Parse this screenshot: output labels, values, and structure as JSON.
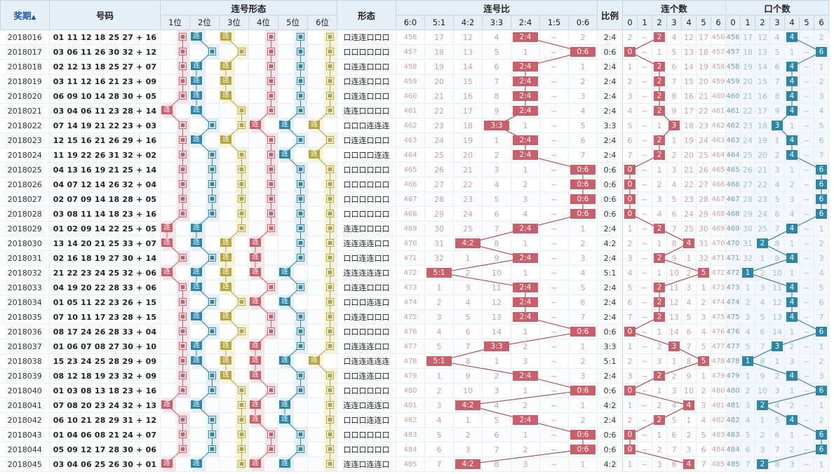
{
  "header": {
    "issue_label": "奖期",
    "sort_arrow": "▲",
    "numbers_label": "号码",
    "lianhao_form_label": "连号形态",
    "form_label": "形态",
    "lianhao_ratio_label": "连号比",
    "bili_label": "比例",
    "lian_count_label": "连个数",
    "kou_count_label": "口个数",
    "positions": [
      "1位",
      "2位",
      "3位",
      "4位",
      "5位",
      "6位"
    ],
    "ratios": [
      "6:0",
      "5:1",
      "4:2",
      "3:3",
      "2:4",
      "1:5",
      "0:6"
    ],
    "counts": [
      "0",
      "1",
      "2",
      "3",
      "4",
      "5",
      "6"
    ]
  },
  "symbols": {
    "lian": "连",
    "open": "口",
    "gap": "~"
  },
  "colors": {
    "position_strips": [
      "#f4e4e7",
      "#e3eef5",
      "#f7f3d8",
      "#f4e4e7",
      "#e3eef5",
      "#f7f3d8"
    ],
    "position_marks": [
      "#c95f6a",
      "#2b86a8",
      "#b5a642",
      "#c95f6a",
      "#2b86a8",
      "#b5a642"
    ],
    "lian_mark": "#c95f6a",
    "kou_mark": "#2b86a8",
    "line": "#9b3a44",
    "line_blue": "#1e6e93"
  },
  "rows": [
    {
      "issue": "2018016",
      "nums": "01 11 12 18 25 27 + 16",
      "form": "口连连口口口",
      "ratio": "2:4",
      "lian": 2,
      "kou": 4,
      "ratio_miss": [
        "456",
        "17",
        "12",
        "4",
        "",
        "~",
        "2"
      ],
      "lian_miss": [
        "2",
        "~",
        "",
        "4",
        "12",
        "17",
        "456"
      ],
      "kou_miss": [
        "456",
        "17",
        "12",
        "4",
        "",
        "~",
        "2"
      ]
    },
    {
      "issue": "2018017",
      "nums": "03 06 11 26 30 32 + 12",
      "form": "口口口口口口",
      "ratio": "0:6",
      "lian": 0,
      "kou": 6,
      "ratio_miss": [
        "457",
        "18",
        "13",
        "5",
        "1",
        "~",
        ""
      ],
      "lian_miss": [
        "",
        "~",
        "1",
        "5",
        "13",
        "18",
        "457"
      ],
      "kou_miss": [
        "457",
        "18",
        "13",
        "5",
        "1",
        "~",
        ""
      ]
    },
    {
      "issue": "2018018",
      "nums": "02 12 13 18 25 27 + 07",
      "form": "口连连口口口",
      "ratio": "2:4",
      "lian": 2,
      "kou": 4,
      "ratio_miss": [
        "458",
        "19",
        "14",
        "6",
        "",
        "~",
        "1"
      ],
      "lian_miss": [
        "1",
        "~",
        "",
        "6",
        "14",
        "19",
        "458"
      ],
      "kou_miss": [
        "458",
        "19",
        "14",
        "6",
        "",
        "~",
        "1"
      ]
    },
    {
      "issue": "2018019",
      "nums": "03 11 12 16 21 23 + 09",
      "form": "口连连口口口",
      "ratio": "2:4",
      "lian": 2,
      "kou": 4,
      "ratio_miss": [
        "459",
        "20",
        "15",
        "7",
        "",
        "~",
        "2"
      ],
      "lian_miss": [
        "2",
        "~",
        "",
        "7",
        "15",
        "20",
        "459"
      ],
      "kou_miss": [
        "459",
        "20",
        "15",
        "7",
        "",
        "~",
        "2"
      ]
    },
    {
      "issue": "2018020",
      "nums": "06 09 10 14 28 30 + 05",
      "form": "口连连口口口",
      "ratio": "2:4",
      "lian": 2,
      "kou": 4,
      "ratio_miss": [
        "460",
        "21",
        "16",
        "8",
        "",
        "~",
        "3"
      ],
      "lian_miss": [
        "3",
        "~",
        "",
        "8",
        "16",
        "21",
        "460"
      ],
      "kou_miss": [
        "460",
        "21",
        "16",
        "8",
        "",
        "~",
        "3"
      ]
    },
    {
      "issue": "2018021",
      "nums": "03 04 06 11 23 28 + 14",
      "form": "连连口口口口",
      "ratio": "2:4",
      "lian": 2,
      "kou": 4,
      "ratio_miss": [
        "461",
        "22",
        "17",
        "9",
        "",
        "~",
        "4"
      ],
      "lian_miss": [
        "4",
        "~",
        "",
        "9",
        "17",
        "22",
        "461"
      ],
      "kou_miss": [
        "461",
        "22",
        "17",
        "9",
        "",
        "~",
        "4"
      ]
    },
    {
      "issue": "2018022",
      "nums": "07 14 19 21 22 23 + 03",
      "form": "口口口连连连",
      "ratio": "3:3",
      "lian": 3,
      "kou": 3,
      "ratio_miss": [
        "462",
        "23",
        "18",
        "",
        "1",
        "~",
        "5"
      ],
      "lian_miss": [
        "5",
        "~",
        "1",
        "",
        "18",
        "23",
        "462"
      ],
      "kou_miss": [
        "462",
        "23",
        "18",
        "",
        "1",
        "~",
        "5"
      ]
    },
    {
      "issue": "2018023",
      "nums": "12 15 16 21 26 29 + 16",
      "form": "口连连口口口",
      "ratio": "2:4",
      "lian": 2,
      "kou": 4,
      "ratio_miss": [
        "463",
        "24",
        "19",
        "1",
        "",
        "~",
        "6"
      ],
      "lian_miss": [
        "6",
        "~",
        "",
        "1",
        "19",
        "24",
        "463"
      ],
      "kou_miss": [
        "463",
        "24",
        "19",
        "1",
        "",
        "~",
        "6"
      ]
    },
    {
      "issue": "2018024",
      "nums": "11 19 22 26 31 32 + 02",
      "form": "口口口口连连",
      "ratio": "2:4",
      "lian": 2,
      "kou": 4,
      "ratio_miss": [
        "464",
        "25",
        "20",
        "2",
        "",
        "~",
        "7"
      ],
      "lian_miss": [
        "7",
        "~",
        "",
        "2",
        "20",
        "25",
        "464"
      ],
      "kou_miss": [
        "464",
        "25",
        "20",
        "2",
        "",
        "~",
        "7"
      ]
    },
    {
      "issue": "2018025",
      "nums": "04 13 16 19 21 25 + 14",
      "form": "口口口口口口",
      "ratio": "0:6",
      "lian": 0,
      "kou": 6,
      "ratio_miss": [
        "465",
        "26",
        "21",
        "3",
        "1",
        "~",
        ""
      ],
      "lian_miss": [
        "",
        "~",
        "1",
        "3",
        "21",
        "26",
        "465"
      ],
      "kou_miss": [
        "465",
        "26",
        "21",
        "3",
        "1",
        "~",
        ""
      ]
    },
    {
      "issue": "2018026",
      "nums": "04 07 12 14 26 32 + 04",
      "form": "口口口口口口",
      "ratio": "0:6",
      "lian": 0,
      "kou": 6,
      "ratio_miss": [
        "466",
        "27",
        "22",
        "4",
        "2",
        "~",
        ""
      ],
      "lian_miss": [
        "",
        "~",
        "2",
        "4",
        "22",
        "27",
        "466"
      ],
      "kou_miss": [
        "466",
        "27",
        "22",
        "4",
        "2",
        "~",
        ""
      ]
    },
    {
      "issue": "2018027",
      "nums": "02 07 09 14 18 28 + 05",
      "form": "口口口口口口",
      "ratio": "0:6",
      "lian": 0,
      "kou": 6,
      "ratio_miss": [
        "467",
        "28",
        "23",
        "5",
        "3",
        "~",
        ""
      ],
      "lian_miss": [
        "",
        "~",
        "3",
        "5",
        "23",
        "28",
        "467"
      ],
      "kou_miss": [
        "467",
        "28",
        "23",
        "5",
        "3",
        "~",
        ""
      ]
    },
    {
      "issue": "2018028",
      "nums": "03 08 11 14 18 23 + 16",
      "form": "口口口口口口",
      "ratio": "0:6",
      "lian": 0,
      "kou": 6,
      "ratio_miss": [
        "468",
        "29",
        "24",
        "6",
        "4",
        "~",
        ""
      ],
      "lian_miss": [
        "",
        "~",
        "4",
        "6",
        "24",
        "29",
        "468"
      ],
      "kou_miss": [
        "468",
        "29",
        "24",
        "6",
        "4",
        "~",
        ""
      ]
    },
    {
      "issue": "2018029",
      "nums": "01 02 09 14 22 25 + 05",
      "form": "连连口口口口",
      "ratio": "2:4",
      "lian": 2,
      "kou": 4,
      "ratio_miss": [
        "469",
        "30",
        "25",
        "7",
        "",
        "~",
        "1"
      ],
      "lian_miss": [
        "1",
        "~",
        "",
        "7",
        "25",
        "30",
        "469"
      ],
      "kou_miss": [
        "469",
        "30",
        "25",
        "7",
        "",
        "~",
        "1"
      ]
    },
    {
      "issue": "2018030",
      "nums": "13 14 20 21 25 33 + 07",
      "form": "连连连连口口",
      "ratio": "4:2",
      "lian": 4,
      "kou": 2,
      "ratio_miss": [
        "470",
        "31",
        "",
        "8",
        "1",
        "~",
        "2"
      ],
      "lian_miss": [
        "2",
        "~",
        "1",
        "8",
        "",
        "31",
        "470"
      ],
      "kou_miss": [
        "470",
        "31",
        "",
        "8",
        "1",
        "~",
        "2"
      ]
    },
    {
      "issue": "2018031",
      "nums": "02 16 18 19 27 30 + 14",
      "form": "口口连连口口",
      "ratio": "2:4",
      "lian": 2,
      "kou": 4,
      "ratio_miss": [
        "471",
        "32",
        "1",
        "9",
        "",
        "~",
        "3"
      ],
      "lian_miss": [
        "3",
        "~",
        "",
        "9",
        "1",
        "32",
        "471"
      ],
      "kou_miss": [
        "471",
        "32",
        "1",
        "9",
        "",
        "~",
        "3"
      ]
    },
    {
      "issue": "2018032",
      "nums": "21 22 23 24 25 32 + 06",
      "form": "连连连连连口",
      "ratio": "5:1",
      "lian": 5,
      "kou": 1,
      "ratio_miss": [
        "472",
        "",
        "2",
        "10",
        "1",
        "~",
        "4"
      ],
      "lian_miss": [
        "4",
        "~",
        "1",
        "10",
        "2",
        "",
        "472"
      ],
      "kou_miss": [
        "472",
        "",
        "2",
        "10",
        "1",
        "~",
        "4"
      ]
    },
    {
      "issue": "2018033",
      "nums": "04 19 20 22 28 33 + 06",
      "form": "口连连口口口",
      "ratio": "2:4",
      "lian": 2,
      "kou": 4,
      "ratio_miss": [
        "473",
        "1",
        "3",
        "11",
        "",
        "~",
        "5"
      ],
      "lian_miss": [
        "5",
        "~",
        "",
        "11",
        "3",
        "1",
        "473"
      ],
      "kou_miss": [
        "473",
        "1",
        "3",
        "11",
        "",
        "~",
        "5"
      ]
    },
    {
      "issue": "2018034",
      "nums": "01 05 11 22 23 26 + 15",
      "form": "口口口连连口",
      "ratio": "2:4",
      "lian": 2,
      "kou": 4,
      "ratio_miss": [
        "474",
        "2",
        "4",
        "12",
        "",
        "~",
        "6"
      ],
      "lian_miss": [
        "6",
        "~",
        "",
        "12",
        "4",
        "2",
        "474"
      ],
      "kou_miss": [
        "474",
        "2",
        "4",
        "12",
        "",
        "~",
        "6"
      ]
    },
    {
      "issue": "2018035",
      "nums": "07 10 11 17 23 28 + 15",
      "form": "口连连口口口",
      "ratio": "2:4",
      "lian": 2,
      "kou": 4,
      "ratio_miss": [
        "475",
        "3",
        "5",
        "13",
        "",
        "~",
        "7"
      ],
      "lian_miss": [
        "7",
        "~",
        "",
        "13",
        "5",
        "3",
        "475"
      ],
      "kou_miss": [
        "475",
        "3",
        "5",
        "13",
        "",
        "~",
        "7"
      ]
    },
    {
      "issue": "2018036",
      "nums": "08 17 24 26 28 33 + 04",
      "form": "口口口口口口",
      "ratio": "0:6",
      "lian": 0,
      "kou": 6,
      "ratio_miss": [
        "476",
        "4",
        "6",
        "14",
        "1",
        "~",
        ""
      ],
      "lian_miss": [
        "",
        "~",
        "1",
        "14",
        "6",
        "4",
        "476"
      ],
      "kou_miss": [
        "476",
        "4",
        "6",
        "14",
        "1",
        "~",
        ""
      ]
    },
    {
      "issue": "2018037",
      "nums": "01 06 07 08 27 30 + 10",
      "form": "口连连连口口",
      "ratio": "3:3",
      "lian": 3,
      "kou": 3,
      "ratio_miss": [
        "477",
        "5",
        "7",
        "",
        "2",
        "~",
        "1"
      ],
      "lian_miss": [
        "1",
        "~",
        "2",
        "",
        "7",
        "5",
        "477"
      ],
      "kou_miss": [
        "477",
        "5",
        "7",
        "",
        "2",
        "~",
        "1"
      ]
    },
    {
      "issue": "2018038",
      "nums": "15 23 24 25 28 29 + 09",
      "form": "口连连连连连",
      "ratio": "5:1",
      "lian": 5,
      "kou": 1,
      "ratio_miss": [
        "478",
        "",
        "8",
        "1",
        "3",
        "~",
        "2"
      ],
      "lian_miss": [
        "2",
        "~",
        "3",
        "1",
        "8",
        "",
        "478"
      ],
      "kou_miss": [
        "478",
        "",
        "8",
        "1",
        "3",
        "~",
        "2"
      ]
    },
    {
      "issue": "2018039",
      "nums": "08 12 18 19 23 32 + 09",
      "form": "口口连连口口",
      "ratio": "2:4",
      "lian": 2,
      "kou": 4,
      "ratio_miss": [
        "479",
        "1",
        "9",
        "2",
        "",
        "~",
        "3"
      ],
      "lian_miss": [
        "3",
        "~",
        "",
        "2",
        "9",
        "1",
        "479"
      ],
      "kou_miss": [
        "479",
        "1",
        "9",
        "2",
        "",
        "~",
        "3"
      ]
    },
    {
      "issue": "2018040",
      "nums": "01 03 08 13 18 23 + 16",
      "form": "口口口口口口",
      "ratio": "0:6",
      "lian": 0,
      "kou": 6,
      "ratio_miss": [
        "480",
        "2",
        "10",
        "3",
        "1",
        "~",
        ""
      ],
      "lian_miss": [
        "",
        "~",
        "1",
        "3",
        "10",
        "2",
        "480"
      ],
      "kou_miss": [
        "480",
        "2",
        "10",
        "3",
        "1",
        "~",
        ""
      ]
    },
    {
      "issue": "2018041",
      "nums": "07 08 20 23 24 32 + 13",
      "form": "连连口连连口",
      "ratio": "4:2",
      "lian": 4,
      "kou": 2,
      "ratio_miss": [
        "481",
        "3",
        "",
        "4",
        "2",
        "~",
        "1"
      ],
      "lian_miss": [
        "1",
        "~",
        "2",
        "4",
        "",
        "3",
        "481"
      ],
      "kou_miss": [
        "481",
        "3",
        "",
        "4",
        "2",
        "~",
        "1"
      ]
    },
    {
      "issue": "2018042",
      "nums": "06 10 21 28 29 31 + 12",
      "form": "口口口连连口",
      "ratio": "2:4",
      "lian": 2,
      "kou": 4,
      "ratio_miss": [
        "482",
        "4",
        "1",
        "5",
        "",
        "~",
        "2"
      ],
      "lian_miss": [
        "2",
        "~",
        "",
        "5",
        "1",
        "4",
        "482"
      ],
      "kou_miss": [
        "482",
        "4",
        "1",
        "5",
        "",
        "~",
        "2"
      ]
    },
    {
      "issue": "2018043",
      "nums": "01 04 06 08 21 24 + 07",
      "form": "口口口口口口",
      "ratio": "0:6",
      "lian": 0,
      "kou": 6,
      "ratio_miss": [
        "483",
        "5",
        "2",
        "6",
        "1",
        "~",
        ""
      ],
      "lian_miss": [
        "",
        "~",
        "1",
        "6",
        "2",
        "5",
        "483"
      ],
      "kou_miss": [
        "483",
        "5",
        "2",
        "6",
        "1",
        "~",
        ""
      ]
    },
    {
      "issue": "2018044",
      "nums": "05 09 12 17 28 30 + 06",
      "form": "口口口口口口",
      "ratio": "0:6",
      "lian": 0,
      "kou": 6,
      "ratio_miss": [
        "484",
        "6",
        "3",
        "7",
        "2",
        "~",
        ""
      ],
      "lian_miss": [
        "",
        "~",
        "2",
        "7",
        "3",
        "6",
        "484"
      ],
      "kou_miss": [
        "484",
        "6",
        "3",
        "7",
        "2",
        "~",
        ""
      ]
    },
    {
      "issue": "2018045",
      "nums": "03 04 06 25 26 30 + 01",
      "form": "连连口连连口",
      "ratio": "4:2",
      "lian": 4,
      "kou": 2,
      "ratio_miss": [
        "485",
        "7",
        "",
        "8",
        "3",
        "~",
        "1"
      ],
      "lian_miss": [
        "1",
        "~",
        "3",
        "8",
        "",
        "7",
        "485"
      ],
      "kou_miss": [
        "485",
        "7",
        "",
        "8",
        "3",
        "~",
        "1"
      ]
    }
  ]
}
